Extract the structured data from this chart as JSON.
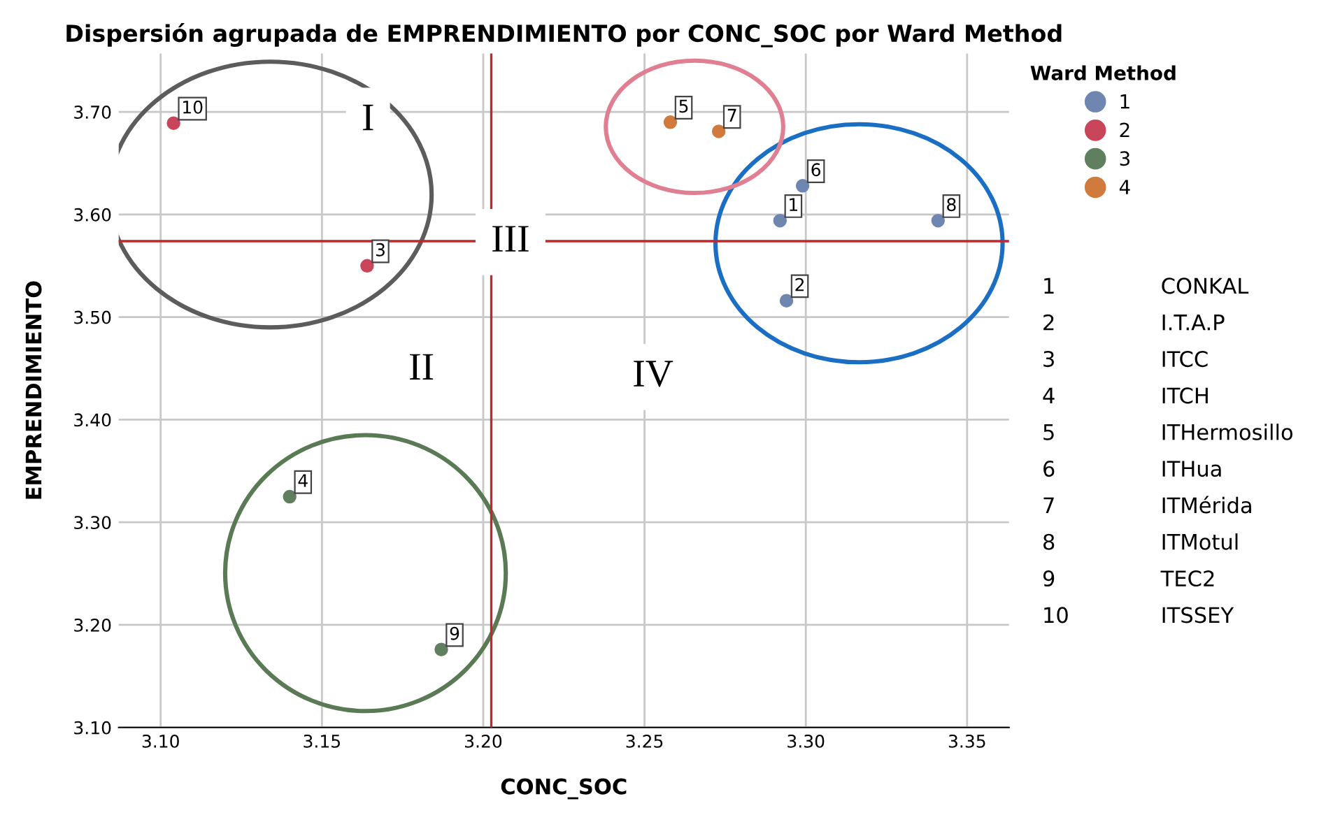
{
  "chart_data": {
    "type": "scatter",
    "title": "Dispersión agrupada de EMPRENDIMIENTO por CONC_SOC por Ward Method",
    "xlabel": "CONC_SOC",
    "ylabel": "EMPRENDIMIENTO",
    "legend_title": "Ward Method",
    "xlim": [
      3.087,
      3.363
    ],
    "ylim": [
      3.1,
      3.757
    ],
    "xticks": [
      {
        "value": 3.1,
        "label": "3.10"
      },
      {
        "value": 3.15,
        "label": "3.15"
      },
      {
        "value": 3.2,
        "label": "3.20"
      },
      {
        "value": 3.25,
        "label": "3.25"
      },
      {
        "value": 3.3,
        "label": "3.30"
      },
      {
        "value": 3.35,
        "label": "3.35"
      }
    ],
    "yticks": [
      {
        "value": 3.1,
        "label": "3.10"
      },
      {
        "value": 3.2,
        "label": "3.20"
      },
      {
        "value": 3.3,
        "label": "3.30"
      },
      {
        "value": 3.4,
        "label": "3.40"
      },
      {
        "value": 3.5,
        "label": "3.50"
      },
      {
        "value": 3.6,
        "label": "3.60"
      },
      {
        "value": 3.7,
        "label": "3.70"
      }
    ],
    "grid": true,
    "legend": "top right",
    "marker": "circle",
    "series": [
      {
        "name": "1",
        "color": "#6f87b0",
        "x": [
          3.292,
          3.294,
          3.299,
          3.341
        ],
        "values": [
          3.594,
          3.516,
          3.628,
          3.594
        ]
      },
      {
        "name": "2",
        "color": "#c8455a",
        "x": [
          3.164,
          3.104
        ],
        "values": [
          3.55,
          3.689
        ]
      },
      {
        "name": "3",
        "color": "#5f7f5f",
        "x": [
          3.14,
          3.187
        ],
        "values": [
          3.325,
          3.176
        ]
      },
      {
        "name": "4",
        "color": "#d07a3d",
        "x": [
          3.258,
          3.273
        ],
        "values": [
          3.69,
          3.681
        ]
      }
    ],
    "ref_lines": [
      {
        "axis": "x",
        "value": 3.2025,
        "color": "#c0282d"
      },
      {
        "axis": "y",
        "value": 3.574,
        "color": "#c0282d"
      }
    ],
    "annotations": [
      {
        "text": "1",
        "x": 3.292,
        "y": 3.594
      },
      {
        "text": "2",
        "x": 3.294,
        "y": 3.516
      },
      {
        "text": "3",
        "x": 3.164,
        "y": 3.55
      },
      {
        "text": "4",
        "x": 3.14,
        "y": 3.325
      },
      {
        "text": "5",
        "x": 3.258,
        "y": 3.69
      },
      {
        "text": "6",
        "x": 3.299,
        "y": 3.628
      },
      {
        "text": "7",
        "x": 3.273,
        "y": 3.681
      },
      {
        "text": "8",
        "x": 3.341,
        "y": 3.594
      },
      {
        "text": "9",
        "x": 3.187,
        "y": 3.176
      },
      {
        "text": "10",
        "x": 3.104,
        "y": 3.689
      },
      "I",
      "II",
      "III",
      "IV",
      "1 CONKAL",
      "2 I.T.A.P",
      "3 ITCC",
      "4 ITCH",
      "5 ITHermosillo",
      "6 ITHua",
      "7 ITMérida",
      "8 ITMotul",
      "9 TEC2",
      "10 ITSSEY"
    ]
  }
}
